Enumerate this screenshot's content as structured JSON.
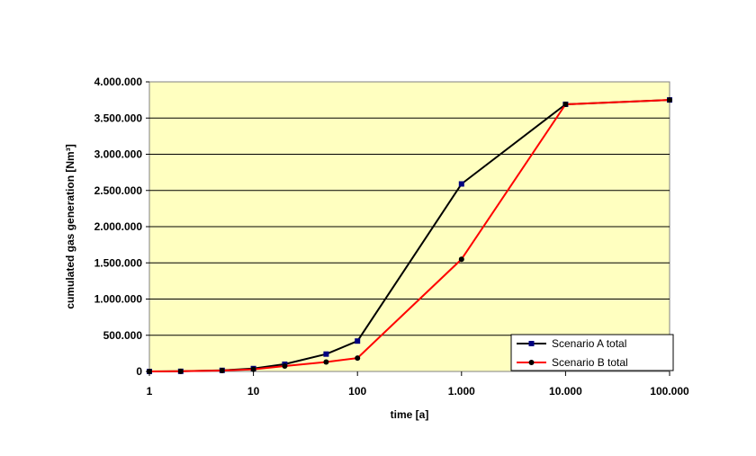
{
  "chart_data": {
    "type": "line",
    "xlabel": "time [a]",
    "ylabel": "cumulated gas generation [Nm³]",
    "x_scale": "log",
    "xlim": [
      1,
      100000
    ],
    "ylim": [
      0,
      4000000
    ],
    "x_ticks": [
      1,
      10,
      100,
      1000,
      10000,
      100000
    ],
    "x_tick_labels": [
      "1",
      "10",
      "100",
      "1.000",
      "10.000",
      "100.000"
    ],
    "y_ticks": [
      0,
      500000,
      1000000,
      1500000,
      2000000,
      2500000,
      3000000,
      3500000,
      4000000
    ],
    "y_tick_labels": [
      "0",
      "500.000",
      "1.000.000",
      "1.500.000",
      "2.000.000",
      "2.500.000",
      "3.000.000",
      "3.500.000",
      "4.000.000"
    ],
    "grid": "horizontal",
    "plot_background": "#ffffc0",
    "legend_position": "bottom-right",
    "series": [
      {
        "name": "Scenario A total",
        "color": "#000000",
        "marker": "square",
        "marker_color": "#000080",
        "x": [
          1,
          2,
          5,
          10,
          20,
          50,
          100,
          1000,
          10000,
          100000
        ],
        "y": [
          0,
          2000,
          15000,
          40000,
          100000,
          240000,
          420000,
          2590000,
          3690000,
          3750000
        ]
      },
      {
        "name": "Scenario B total",
        "color": "#ff0000",
        "marker": "circle",
        "marker_color": "#000000",
        "x": [
          1,
          2,
          5,
          10,
          20,
          50,
          100,
          1000,
          10000,
          100000
        ],
        "y": [
          0,
          2000,
          12000,
          30000,
          75000,
          130000,
          185000,
          1550000,
          3690000,
          3750000
        ]
      }
    ]
  }
}
